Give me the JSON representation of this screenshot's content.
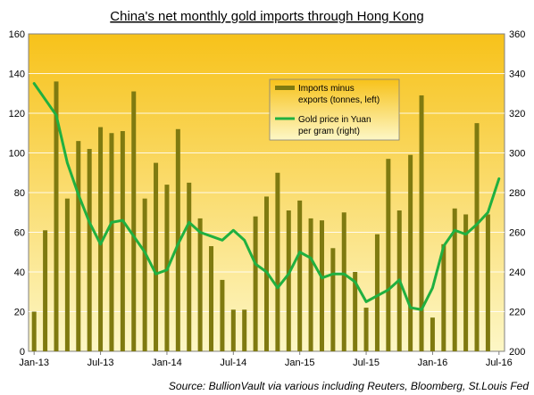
{
  "chart_data": {
    "type": "bar+line",
    "title": "China's net monthly  gold imports through  Hong Kong",
    "source": "Source: BullionVault via various including Reuters, Bloomberg, St.Louis Fed",
    "x_tick_labels": [
      "Jan-13",
      "Jul-13",
      "Jan-14",
      "Jul-14",
      "Jan-15",
      "Jul-15",
      "Jan-16",
      "Jul-16"
    ],
    "y_left": {
      "min": 0,
      "max": 160,
      "ticks": [
        0,
        20,
        40,
        60,
        80,
        100,
        120,
        140,
        160
      ]
    },
    "y_right": {
      "min": 200,
      "max": 360,
      "ticks": [
        200,
        220,
        240,
        260,
        280,
        300,
        320,
        340,
        360
      ]
    },
    "months": [
      "Jan-13",
      "Feb-13",
      "Mar-13",
      "Apr-13",
      "May-13",
      "Jun-13",
      "Jul-13",
      "Aug-13",
      "Sep-13",
      "Oct-13",
      "Nov-13",
      "Dec-13",
      "Jan-14",
      "Feb-14",
      "Mar-14",
      "Apr-14",
      "May-14",
      "Jun-14",
      "Jul-14",
      "Aug-14",
      "Sep-14",
      "Oct-14",
      "Nov-14",
      "Dec-14",
      "Jan-15",
      "Feb-15",
      "Mar-15",
      "Apr-15",
      "May-15",
      "Jun-15",
      "Jul-15",
      "Aug-15",
      "Sep-15",
      "Oct-15",
      "Nov-15",
      "Dec-15",
      "Jan-16",
      "Feb-16",
      "Mar-16",
      "Apr-16",
      "May-16",
      "Jun-16",
      "Jul-16"
    ],
    "series": [
      {
        "name": "Imports minus exports (tonnes, left)",
        "kind": "bar",
        "axis": "left",
        "color": "#7f7a10",
        "values": [
          20,
          61,
          136,
          77,
          106,
          102,
          113,
          110,
          111,
          131,
          77,
          95,
          84,
          112,
          85,
          67,
          53,
          36,
          21,
          21,
          68,
          78,
          90,
          71,
          76,
          67,
          66,
          52,
          70,
          40,
          22,
          59,
          97,
          71,
          99,
          129,
          17,
          54,
          72,
          69,
          115,
          69,
          null
        ]
      },
      {
        "name": "Gold price in Yuan per gram (right)",
        "kind": "line",
        "axis": "right",
        "color": "#20b040",
        "values": [
          335,
          327,
          319,
          295,
          279,
          265,
          254,
          265,
          266,
          258,
          250,
          239,
          241,
          254,
          265,
          260,
          258,
          256,
          261,
          256,
          244,
          240,
          232,
          239,
          250,
          247,
          237,
          239,
          239,
          235,
          225,
          228,
          231,
          236,
          222,
          221,
          232,
          253,
          261,
          259,
          264,
          270,
          287
        ]
      }
    ],
    "legend_position": "top-center",
    "grid": true,
    "colors": {
      "plot_gradient_top": "#f7c21a",
      "plot_gradient_bottom": "#fdf7c6",
      "bar": "#7f7a10",
      "line": "#20b040"
    }
  }
}
